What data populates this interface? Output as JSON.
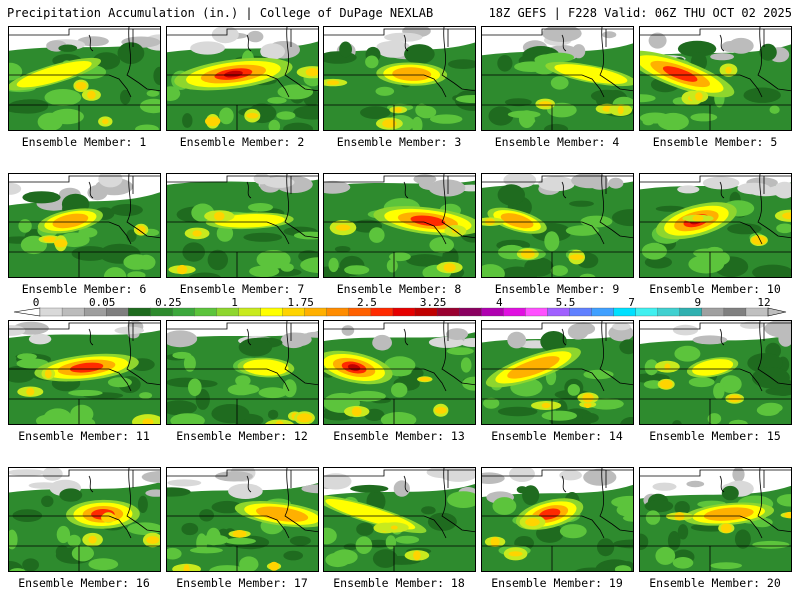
{
  "header": {
    "left_title": "Precipitation Accumulation (in.) | College of DuPage NEXLAB",
    "right_title": "18Z GEFS | F228 Valid: 06Z THU OCT 02 2025"
  },
  "colorbar": {
    "tick_labels": [
      "0",
      "0.05",
      "0.25",
      "1",
      "1.75",
      "2.5",
      "3.25",
      "4",
      "5.5",
      "7",
      "9",
      "12"
    ],
    "colors": [
      "#d9d9d9",
      "#bcbcbc",
      "#9e9e9e",
      "#7f7f7f",
      "#1f6b1f",
      "#2e8b2e",
      "#3da83d",
      "#5cc43c",
      "#8ed62e",
      "#c8ea1e",
      "#ffff00",
      "#ffd400",
      "#ffb000",
      "#ff8c00",
      "#ff6000",
      "#ff2a00",
      "#e60000",
      "#c00000",
      "#9a0030",
      "#8a0060",
      "#b000b0",
      "#e010e0",
      "#ff50ff",
      "#a060ff",
      "#6080ff",
      "#40a0ff",
      "#00e0ff",
      "#40f0f0",
      "#40d0d0",
      "#30b0b0",
      "#a0a0a0",
      "#808080",
      "#c0c0c0"
    ]
  },
  "members": [
    {
      "label": "Ensemble Member: 1"
    },
    {
      "label": "Ensemble Member: 2"
    },
    {
      "label": "Ensemble Member: 3"
    },
    {
      "label": "Ensemble Member: 4"
    },
    {
      "label": "Ensemble Member: 5"
    },
    {
      "label": "Ensemble Member: 6"
    },
    {
      "label": "Ensemble Member: 7"
    },
    {
      "label": "Ensemble Member: 8"
    },
    {
      "label": "Ensemble Member: 9"
    },
    {
      "label": "Ensemble Member: 10"
    },
    {
      "label": "Ensemble Member: 11"
    },
    {
      "label": "Ensemble Member: 12"
    },
    {
      "label": "Ensemble Member: 13"
    },
    {
      "label": "Ensemble Member: 14"
    },
    {
      "label": "Ensemble Member: 15"
    },
    {
      "label": "Ensemble Member: 16"
    },
    {
      "label": "Ensemble Member: 17"
    },
    {
      "label": "Ensemble Member: 18"
    },
    {
      "label": "Ensemble Member: 19"
    },
    {
      "label": "Ensemble Member: 20"
    }
  ]
}
